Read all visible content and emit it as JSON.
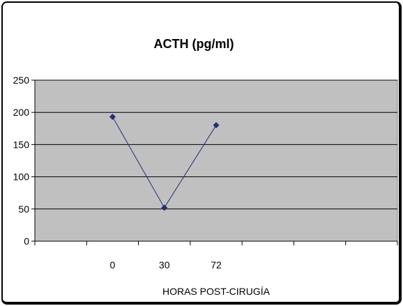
{
  "chart_data": {
    "type": "line",
    "title": "ACTH (pg/ml)",
    "xlabel": "HORAS POST-CIRUGÍA",
    "ylabel": "",
    "categories": [
      "0",
      "30",
      "72"
    ],
    "slots": 7,
    "series": [
      {
        "values": [
          193,
          52,
          180
        ],
        "color": "#1f2f7a"
      }
    ],
    "ylim": [
      0,
      250
    ],
    "yticks": [
      0,
      50,
      100,
      150,
      200,
      250
    ],
    "grid": true,
    "legend": "none",
    "plot_bg": "#c0c0c0"
  }
}
